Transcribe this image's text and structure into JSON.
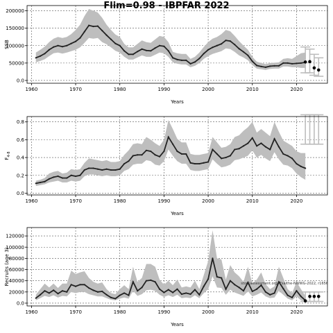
{
  "title": "Flim=0.98 - IBPFAR 2022",
  "panels": [
    {
      "ylabel": "SSB",
      "xlabel": "Years",
      "note": ""
    },
    {
      "ylabel": "F",
      "ylabel_sub": "4-8",
      "xlabel": "Years",
      "note": ""
    },
    {
      "ylabel": "Recruits (age 3)",
      "xlabel": "Years",
      "note": "stockassessment.org, Fsaithe-NWWG-2022, r1656"
    }
  ],
  "chart_data": [
    {
      "type": "line",
      "title": "Flim=0.98 - IBPFAR 2022",
      "xlabel": "Years",
      "ylabel": "SSB",
      "xlim": [
        1959,
        2027
      ],
      "ylim": [
        -8000,
        215000
      ],
      "xticks": [
        1960,
        1970,
        1980,
        1990,
        2000,
        2010,
        2020
      ],
      "yticks": [
        0,
        50000,
        100000,
        150000,
        200000
      ],
      "grid": true,
      "x": [
        1961,
        1962,
        1963,
        1964,
        1965,
        1966,
        1967,
        1968,
        1969,
        1970,
        1971,
        1972,
        1973,
        1974,
        1975,
        1976,
        1977,
        1978,
        1979,
        1980,
        1981,
        1982,
        1983,
        1984,
        1985,
        1986,
        1987,
        1988,
        1989,
        1990,
        1991,
        1992,
        1993,
        1994,
        1995,
        1996,
        1997,
        1998,
        1999,
        2000,
        2001,
        2002,
        2003,
        2004,
        2005,
        2006,
        2007,
        2008,
        2009,
        2010,
        2011,
        2012,
        2013,
        2014,
        2015,
        2016,
        2017,
        2018,
        2019,
        2020,
        2021,
        2022
      ],
      "series": [
        {
          "values": [
            65000,
            70000,
            77000,
            88000,
            96000,
            100000,
            97000,
            100000,
            106000,
            112000,
            122000,
            140000,
            158000,
            155000,
            156000,
            143000,
            130000,
            118000,
            106000,
            100000,
            85000,
            75000,
            75000,
            83000,
            90000,
            86000,
            85000,
            93000,
            100000,
            98000,
            85000,
            65000,
            60000,
            58000,
            58000,
            48000,
            53000,
            63000,
            77000,
            88000,
            95000,
            100000,
            105000,
            115000,
            113000,
            103000,
            91000,
            82000,
            72000,
            55000,
            43000,
            40000,
            38000,
            41000,
            42000,
            42000,
            50000,
            50000,
            48000,
            49000,
            50000,
            52000
          ]
        },
        {
          "name": "upper",
          "values": [
            80000,
            88000,
            97000,
            110000,
            120000,
            125000,
            122000,
            125000,
            133000,
            145000,
            160000,
            185000,
            205000,
            200000,
            195000,
            180000,
            160000,
            145000,
            132000,
            125000,
            105000,
            95000,
            95000,
            105000,
            115000,
            110000,
            108000,
            118000,
            128000,
            125000,
            110000,
            82000,
            78000,
            76000,
            76000,
            62000,
            68000,
            80000,
            96000,
            110000,
            120000,
            125000,
            133000,
            145000,
            141000,
            128000,
            113000,
            100000,
            88000,
            68000,
            54000,
            50000,
            47000,
            50000,
            51000,
            52000,
            62000,
            64000,
            62000,
            70000,
            78000,
            80000
          ]
        },
        {
          "name": "lower",
          "values": [
            52000,
            56000,
            61000,
            70000,
            78000,
            80000,
            77000,
            80000,
            84000,
            88000,
            95000,
            108000,
            122000,
            120000,
            122000,
            110000,
            104000,
            95000,
            85000,
            80000,
            68000,
            60000,
            60000,
            66000,
            72000,
            68000,
            68000,
            74000,
            80000,
            78000,
            68000,
            52000,
            48000,
            46000,
            46000,
            38000,
            42000,
            50000,
            62000,
            70000,
            76000,
            80000,
            84000,
            92000,
            90000,
            82000,
            72000,
            66000,
            58000,
            44000,
            34000,
            32000,
            30000,
            33000,
            34000,
            34000,
            40000,
            40000,
            38000,
            38000,
            36000,
            36000
          ]
        }
      ],
      "extra_points": [
        [
          2022,
          53000
        ],
        [
          2023,
          54000
        ],
        [
          2024,
          36000
        ],
        [
          2025,
          30000
        ]
      ],
      "error_bars": [
        [
          2022,
          22000,
          96000
        ],
        [
          2023,
          22000,
          90000
        ],
        [
          2024,
          15000,
          75000
        ],
        [
          2025,
          12000,
          65000
        ]
      ]
    },
    {
      "type": "line",
      "xlabel": "Years",
      "ylabel": "F 4-8",
      "xlim": [
        1959,
        2027
      ],
      "ylim": [
        -0.02,
        0.86
      ],
      "xticks": [
        1960,
        1970,
        1980,
        1990,
        2000,
        2010,
        2020
      ],
      "yticks": [
        0.0,
        0.2,
        0.4,
        0.6,
        0.8
      ],
      "grid": true,
      "x": [
        1961,
        1962,
        1963,
        1964,
        1965,
        1966,
        1967,
        1968,
        1969,
        1970,
        1971,
        1972,
        1973,
        1974,
        1975,
        1976,
        1977,
        1978,
        1979,
        1980,
        1981,
        1982,
        1983,
        1984,
        1985,
        1986,
        1987,
        1988,
        1989,
        1990,
        1991,
        1992,
        1993,
        1994,
        1995,
        1996,
        1997,
        1998,
        1999,
        2000,
        2001,
        2002,
        2003,
        2004,
        2005,
        2006,
        2007,
        2008,
        2009,
        2010,
        2011,
        2012,
        2013,
        2014,
        2015,
        2016,
        2017,
        2018,
        2019,
        2020,
        2021,
        2022
      ],
      "series": [
        {
          "values": [
            0.11,
            0.12,
            0.13,
            0.16,
            0.18,
            0.19,
            0.17,
            0.17,
            0.2,
            0.19,
            0.2,
            0.26,
            0.28,
            0.28,
            0.27,
            0.26,
            0.27,
            0.26,
            0.26,
            0.27,
            0.33,
            0.36,
            0.42,
            0.43,
            0.43,
            0.48,
            0.47,
            0.43,
            0.41,
            0.47,
            0.63,
            0.55,
            0.47,
            0.44,
            0.44,
            0.34,
            0.33,
            0.33,
            0.34,
            0.35,
            0.49,
            0.44,
            0.39,
            0.4,
            0.42,
            0.49,
            0.5,
            0.53,
            0.56,
            0.62,
            0.53,
            0.56,
            0.52,
            0.49,
            0.61,
            0.52,
            0.44,
            0.42,
            0.39,
            0.33,
            0.3,
            0.28
          ]
        },
        {
          "name": "upper",
          "values": [
            0.14,
            0.15,
            0.17,
            0.22,
            0.24,
            0.25,
            0.22,
            0.23,
            0.27,
            0.26,
            0.27,
            0.34,
            0.39,
            0.38,
            0.37,
            0.36,
            0.37,
            0.35,
            0.35,
            0.36,
            0.43,
            0.48,
            0.55,
            0.56,
            0.55,
            0.63,
            0.6,
            0.56,
            0.53,
            0.6,
            0.82,
            0.72,
            0.61,
            0.57,
            0.57,
            0.44,
            0.43,
            0.43,
            0.44,
            0.45,
            0.63,
            0.57,
            0.51,
            0.52,
            0.55,
            0.63,
            0.65,
            0.7,
            0.74,
            0.8,
            0.68,
            0.72,
            0.68,
            0.64,
            0.8,
            0.69,
            0.59,
            0.56,
            0.53,
            0.47,
            0.45,
            0.45
          ]
        },
        {
          "name": "lower",
          "values": [
            0.08,
            0.09,
            0.1,
            0.12,
            0.13,
            0.14,
            0.12,
            0.12,
            0.14,
            0.13,
            0.14,
            0.19,
            0.21,
            0.21,
            0.2,
            0.19,
            0.2,
            0.19,
            0.19,
            0.2,
            0.25,
            0.27,
            0.32,
            0.33,
            0.33,
            0.37,
            0.36,
            0.32,
            0.31,
            0.36,
            0.49,
            0.42,
            0.36,
            0.33,
            0.33,
            0.26,
            0.25,
            0.25,
            0.26,
            0.27,
            0.38,
            0.33,
            0.29,
            0.3,
            0.32,
            0.37,
            0.38,
            0.4,
            0.42,
            0.48,
            0.4,
            0.43,
            0.39,
            0.36,
            0.46,
            0.38,
            0.32,
            0.31,
            0.28,
            0.22,
            0.18,
            0.15
          ]
        }
      ],
      "extra_points": [],
      "error_bars": [
        [
          2022,
          0.55,
          0.88
        ],
        [
          2023,
          0.55,
          0.88
        ],
        [
          2024,
          0.55,
          0.88
        ],
        [
          2025,
          0.55,
          0.88
        ]
      ]
    },
    {
      "type": "line",
      "xlabel": "Years",
      "ylabel": "Recruits (age 3)",
      "xlim": [
        1959,
        2027
      ],
      "ylim": [
        -5000,
        135000
      ],
      "xticks": [
        1960,
        1970,
        1980,
        1990,
        2000,
        2010,
        2020
      ],
      "yticks": [
        0,
        20000,
        40000,
        60000,
        80000,
        100000,
        120000
      ],
      "grid": true,
      "x": [
        1961,
        1962,
        1963,
        1964,
        1965,
        1966,
        1967,
        1968,
        1969,
        1970,
        1971,
        1972,
        1973,
        1974,
        1975,
        1976,
        1977,
        1978,
        1979,
        1980,
        1981,
        1982,
        1983,
        1984,
        1985,
        1986,
        1987,
        1988,
        1989,
        1990,
        1991,
        1992,
        1993,
        1994,
        1995,
        1996,
        1997,
        1998,
        1999,
        2000,
        2001,
        2002,
        2003,
        2004,
        2005,
        2006,
        2007,
        2008,
        2009,
        2010,
        2011,
        2012,
        2013,
        2014,
        2015,
        2016,
        2017,
        2018,
        2019,
        2020,
        2021,
        2022
      ],
      "series": [
        {
          "values": [
            9000,
            15000,
            22000,
            18000,
            23000,
            17000,
            22000,
            20000,
            33000,
            30000,
            33000,
            33000,
            27000,
            23000,
            20000,
            21000,
            15000,
            10000,
            8000,
            14000,
            18000,
            14000,
            38000,
            22000,
            28000,
            40000,
            41000,
            38000,
            25000,
            19000,
            24000,
            19000,
            25000,
            16000,
            18000,
            16000,
            24000,
            15000,
            30000,
            43000,
            80000,
            47000,
            45000,
            25000,
            40000,
            33000,
            28000,
            22000,
            37000,
            21000,
            25000,
            32000,
            20000,
            15000,
            18000,
            38000,
            26000,
            14000,
            10000,
            22000,
            12000,
            5000
          ]
        },
        {
          "name": "upper",
          "values": [
            15000,
            25000,
            35000,
            28000,
            35000,
            27000,
            35000,
            35000,
            58000,
            52000,
            55000,
            57000,
            45000,
            38000,
            35000,
            37000,
            25000,
            18000,
            16000,
            25000,
            32000,
            25000,
            65000,
            38000,
            45000,
            70000,
            70000,
            65000,
            42000,
            33000,
            40000,
            32000,
            42000,
            28000,
            30000,
            28000,
            40000,
            25000,
            50000,
            75000,
            130000,
            80000,
            78000,
            42000,
            68000,
            55000,
            48000,
            38000,
            65000,
            35000,
            42000,
            55000,
            34000,
            25000,
            30000,
            65000,
            45000,
            25000,
            18000,
            38000,
            25000,
            13000
          ]
        },
        {
          "name": "lower",
          "values": [
            5000,
            9000,
            13000,
            11000,
            14000,
            10000,
            13000,
            12000,
            20000,
            18000,
            20000,
            20000,
            16000,
            14000,
            12000,
            12000,
            9000,
            6000,
            5000,
            8000,
            10000,
            8000,
            22000,
            13000,
            16000,
            23000,
            24000,
            22000,
            15000,
            11000,
            14000,
            11000,
            15000,
            9000,
            10000,
            9000,
            14000,
            9000,
            18000,
            25000,
            48000,
            28000,
            27000,
            15000,
            24000,
            19000,
            16000,
            13000,
            21000,
            12000,
            15000,
            19000,
            12000,
            9000,
            10000,
            22000,
            15000,
            8000,
            5000,
            12000,
            5000,
            2000
          ]
        }
      ],
      "extra_points": [
        [
          2022,
          4000
        ],
        [
          2023,
          12000
        ],
        [
          2024,
          12000
        ],
        [
          2025,
          12000
        ]
      ],
      "error_bars": [
        [
          2022,
          3000,
          20000
        ],
        [
          2023,
          3000,
          20000
        ],
        [
          2024,
          3000,
          20000
        ],
        [
          2025,
          3000,
          20000
        ]
      ]
    }
  ],
  "colors": {
    "band": "#bebebe",
    "line": "#222222",
    "points": "#000000",
    "errorbar": "#bdbdbd",
    "grid": "#555555"
  }
}
